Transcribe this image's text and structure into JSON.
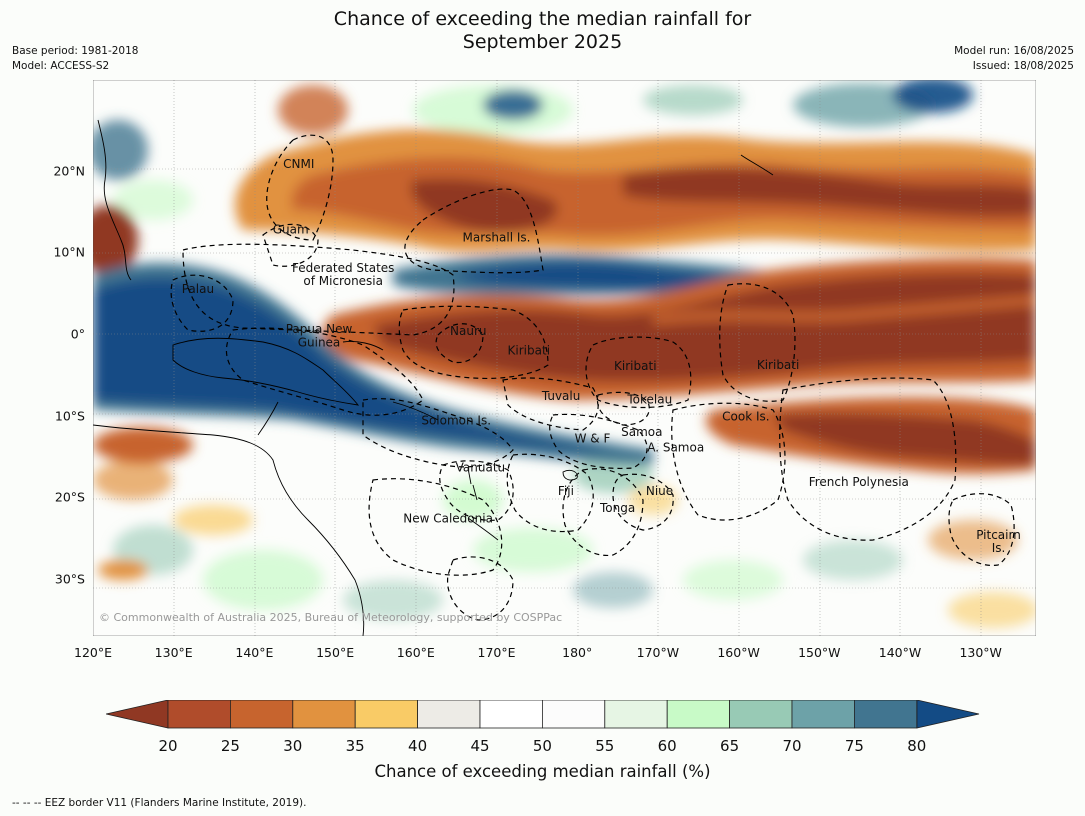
{
  "title_line1": "Chance of exceeding the median rainfall for",
  "title_line2": "September 2025",
  "meta_left": [
    "Base period: 1981-2018",
    "Model: ACCESS-S2"
  ],
  "meta_right": [
    "Model run: 16/08/2025",
    "Issued: 18/08/2025"
  ],
  "lon_labels": [
    "120°E",
    "130°E",
    "140°E",
    "150°E",
    "160°E",
    "170°E",
    "180°",
    "170°W",
    "160°W",
    "150°W",
    "140°W",
    "130°W"
  ],
  "lat_labels": [
    "20°N",
    "10°N",
    "0°",
    "10°S",
    "20°S",
    "30°S"
  ],
  "regions": [
    {
      "name": "CNMI",
      "lon": 145.5,
      "lat": 20.3
    },
    {
      "name": "Guam",
      "lon": 144.5,
      "lat": 12.3
    },
    {
      "name": "Marshall Is.",
      "lon": 170,
      "lat": 11.3
    },
    {
      "name": "Federated States",
      "lon": 151,
      "lat": 7.6
    },
    {
      "name": "of Micronesia",
      "lon": 151,
      "lat": 6.0
    },
    {
      "name": "Palau",
      "lon": 133,
      "lat": 5.0
    },
    {
      "name": "Papua New",
      "lon": 148,
      "lat": 0.1
    },
    {
      "name": "Guinea",
      "lon": 148,
      "lat": -1.5
    },
    {
      "name": "Nauru",
      "lon": 166.5,
      "lat": -0.1
    },
    {
      "name": "Kiribati",
      "lon": 174,
      "lat": -2.5
    },
    {
      "name": "Kiribati",
      "lon": -172.8,
      "lat": -4.4
    },
    {
      "name": "Kiribati",
      "lon": -155.1,
      "lat": -4.3
    },
    {
      "name": "Tuvalu",
      "lon": 178,
      "lat": -8.1
    },
    {
      "name": "Tokelau",
      "lon": -171,
      "lat": -8.5
    },
    {
      "name": "Cook Is.",
      "lon": -159.1,
      "lat": -10.6
    },
    {
      "name": "Solomon Is.",
      "lon": 165,
      "lat": -11.1
    },
    {
      "name": "Samoa",
      "lon": -172,
      "lat": -12.5
    },
    {
      "name": "W & F",
      "lon": -178.1,
      "lat": -13.3
    },
    {
      "name": "A. Samoa",
      "lon": -167.8,
      "lat": -14.4
    },
    {
      "name": "Vanuatu",
      "lon": 168,
      "lat": -16.8
    },
    {
      "name": "French Polynesia",
      "lon": -145.1,
      "lat": -18.6
    },
    {
      "name": "Fiji",
      "lon": 178.6,
      "lat": -19.7
    },
    {
      "name": "Niue",
      "lon": -169.8,
      "lat": -19.7
    },
    {
      "name": "Tonga",
      "lon": -175,
      "lat": -21.8
    },
    {
      "name": "New Caledonia",
      "lon": 164,
      "lat": -23.1
    },
    {
      "name": "Pitcairn",
      "lon": -127.8,
      "lat": -25.1
    },
    {
      "name": "Is.",
      "lon": -127.8,
      "lat": -26.7
    }
  ],
  "copyright": "© Commonwealth of Australia 2025, Bureau of Meteorology, supported by COSPPac",
  "colorbar": {
    "ticks": [
      "20",
      "25",
      "30",
      "35",
      "40",
      "45",
      "50",
      "55",
      "60",
      "65",
      "70",
      "75",
      "80"
    ],
    "colors": [
      "#b04c2b",
      "#c7642e",
      "#e1923f",
      "#f9cb66",
      "#edebe6",
      "#ffffff",
      "#fcfcfc",
      "#e6f5e4",
      "#c8fac7",
      "#98cab5",
      "#6da2a8",
      "#417590"
    ],
    "low_color": "#903823",
    "high_color": "#134b85",
    "label": "Chance of exceeding median rainfall (%)"
  },
  "footnote": "--  --  -- EEZ border V11 (Flanders Marine Institute, 2019)."
}
